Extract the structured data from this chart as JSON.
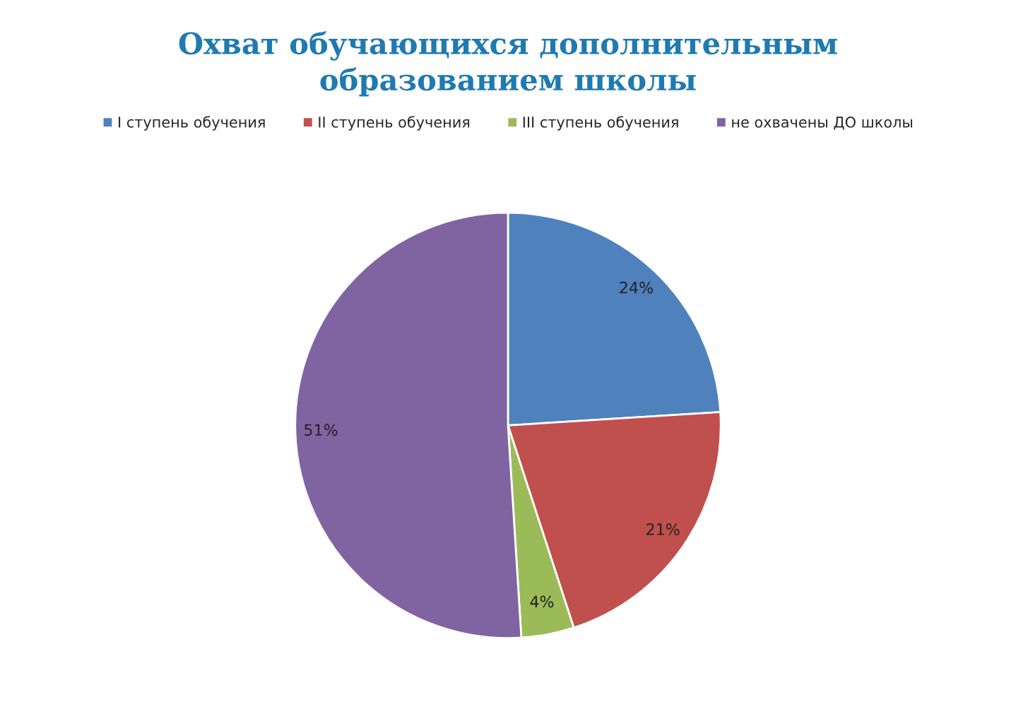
{
  "chart_data": {
    "type": "pie",
    "title": "Охват обучающихся дополнительным\nобразованием школы",
    "categories": [
      "I ступень обучения",
      "II ступень обучения",
      "III ступень обучения",
      "не охвачены ДО школы"
    ],
    "values": [
      24,
      21,
      4,
      51
    ],
    "colors": [
      "#4f81bd",
      "#c0504d",
      "#9bbb59",
      "#8064a2"
    ],
    "value_labels": [
      "24%",
      "21%",
      "4%",
      "51%"
    ],
    "legend": "top"
  }
}
